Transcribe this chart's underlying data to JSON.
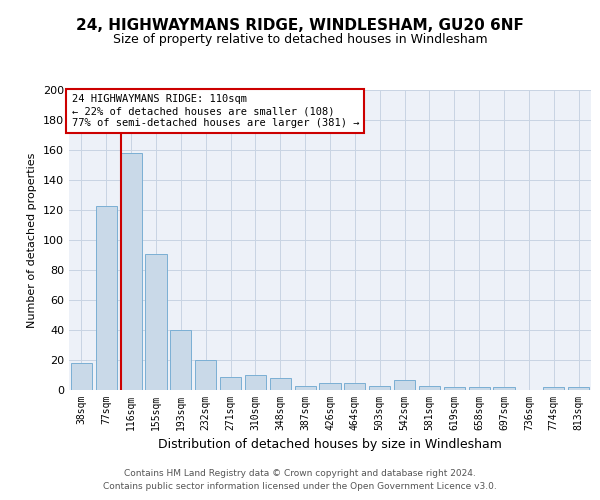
{
  "title1": "24, HIGHWAYMANS RIDGE, WINDLESHAM, GU20 6NF",
  "title2": "Size of property relative to detached houses in Windlesham",
  "xlabel": "Distribution of detached houses by size in Windlesham",
  "ylabel": "Number of detached properties",
  "bins": [
    "38sqm",
    "77sqm",
    "116sqm",
    "155sqm",
    "193sqm",
    "232sqm",
    "271sqm",
    "310sqm",
    "348sqm",
    "387sqm",
    "426sqm",
    "464sqm",
    "503sqm",
    "542sqm",
    "581sqm",
    "619sqm",
    "658sqm",
    "697sqm",
    "736sqm",
    "774sqm",
    "813sqm"
  ],
  "values": [
    18,
    123,
    158,
    91,
    40,
    20,
    9,
    10,
    8,
    3,
    5,
    5,
    3,
    7,
    3,
    2,
    2,
    2,
    0,
    2,
    2
  ],
  "bar_color": "#c9d9e8",
  "bar_edge_color": "#7bafd4",
  "red_line_color": "#cc0000",
  "annotation_text": "24 HIGHWAYMANS RIDGE: 110sqm\n← 22% of detached houses are smaller (108)\n77% of semi-detached houses are larger (381) →",
  "annotation_box_color": "white",
  "annotation_box_edge_color": "#cc0000",
  "ylim": [
    0,
    200
  ],
  "yticks": [
    0,
    20,
    40,
    60,
    80,
    100,
    120,
    140,
    160,
    180,
    200
  ],
  "grid_color": "#c8d4e3",
  "background_color": "#edf1f8",
  "footer1": "Contains HM Land Registry data © Crown copyright and database right 2024.",
  "footer2": "Contains public sector information licensed under the Open Government Licence v3.0."
}
